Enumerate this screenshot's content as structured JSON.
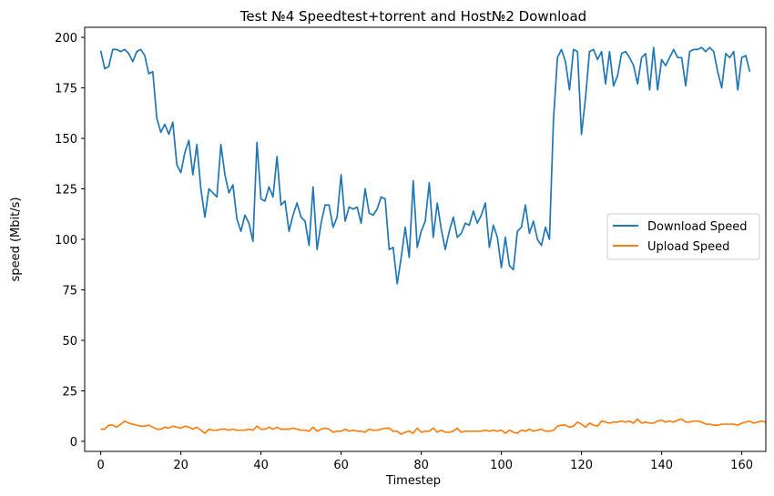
{
  "chart_data": {
    "type": "line",
    "title": "Test №4 Speedtest+torrent and Host№2 Download",
    "xlabel": "Timestep",
    "ylabel": "speed (Mbit/s)",
    "xlim": [
      -4,
      166
    ],
    "ylim": [
      -5,
      205
    ],
    "xticks": [
      0,
      20,
      40,
      60,
      80,
      100,
      120,
      140,
      160
    ],
    "yticks": [
      0,
      25,
      50,
      75,
      100,
      125,
      150,
      175,
      200
    ],
    "grid": false,
    "legend_position": "center-right",
    "series": [
      {
        "name": "Download Speed",
        "color": "#1f77b4",
        "values": [
          193.5,
          184.5,
          185.5,
          194,
          194,
          193,
          194,
          192,
          188,
          193,
          194,
          191,
          182,
          183,
          160,
          153,
          157,
          152,
          158,
          137,
          133,
          143,
          149,
          132,
          147,
          125,
          111,
          125,
          123,
          121,
          147,
          132,
          123,
          127,
          110,
          104,
          112,
          108,
          99,
          148,
          120,
          119,
          126,
          121,
          141,
          117,
          119,
          104,
          112,
          118,
          111,
          109,
          97,
          126,
          95,
          108,
          117,
          117,
          106,
          111,
          132,
          109,
          116,
          115,
          116,
          108,
          125,
          113,
          112,
          115,
          121,
          120,
          95,
          96,
          78,
          91,
          106,
          91,
          129,
          96,
          104,
          109,
          128,
          101,
          118,
          105,
          95,
          104,
          111,
          101,
          103,
          108,
          107,
          114,
          108,
          112,
          118,
          96,
          107,
          101,
          86,
          101,
          87,
          85,
          104,
          106,
          117,
          103,
          109,
          100,
          97,
          106,
          100,
          159,
          190,
          194,
          188,
          174,
          194,
          193,
          152,
          170,
          193,
          194,
          189,
          193,
          177,
          193,
          176,
          181,
          192,
          193,
          190,
          186,
          177,
          190,
          192,
          174,
          195,
          174,
          189,
          186,
          190,
          194,
          190,
          190,
          176,
          193,
          194,
          194,
          195,
          193,
          195,
          193,
          183,
          175,
          192,
          190,
          193,
          174,
          190,
          191,
          183
        ]
      },
      {
        "name": "Upload Speed",
        "color": "#ff7f0e",
        "values": [
          6,
          6,
          8,
          8,
          7,
          8.5,
          10,
          9,
          8.5,
          8,
          7.5,
          7.5,
          8,
          7,
          6,
          6,
          7,
          6.5,
          7.5,
          7,
          6.5,
          7.5,
          7,
          6,
          7,
          5.5,
          4,
          6,
          5.5,
          5.5,
          6,
          6,
          5.5,
          6,
          5.5,
          5.5,
          5.5,
          6,
          5.5,
          7.5,
          6,
          6,
          7,
          6,
          7,
          6,
          6,
          6,
          6.5,
          6,
          5.5,
          5.5,
          5,
          7,
          5,
          6,
          6.5,
          6,
          4.5,
          5,
          5,
          6,
          5,
          5.5,
          5,
          5,
          4.5,
          6,
          5.5,
          5.5,
          6,
          6.5,
          6.5,
          5,
          5,
          3.5,
          4.5,
          5,
          4,
          6.5,
          4.5,
          5,
          5,
          6.5,
          4.5,
          5.5,
          4.5,
          4.5,
          5,
          6.5,
          4.5,
          5,
          5,
          5,
          5,
          5,
          5.5,
          5,
          5.5,
          5,
          5.5,
          4,
          5.5,
          4.5,
          4,
          5.5,
          5,
          6,
          5,
          5.5,
          6,
          5,
          5,
          5.5,
          7.5,
          8,
          8,
          7,
          7.5,
          9.5,
          8.5,
          7,
          9,
          8,
          7.5,
          10,
          9.5,
          9,
          9.5,
          9.5,
          10,
          9.5,
          10,
          9,
          11,
          9,
          9.5,
          9,
          9,
          10,
          10.5,
          9.5,
          10,
          9.5,
          10.5,
          11,
          9.5,
          9.5,
          10,
          10,
          9.5,
          8.5,
          8.5,
          8,
          8,
          8.5,
          8.5,
          8.5,
          8.5,
          8,
          9,
          9.5,
          10,
          9,
          9.5,
          10,
          9.5
        ]
      }
    ]
  }
}
